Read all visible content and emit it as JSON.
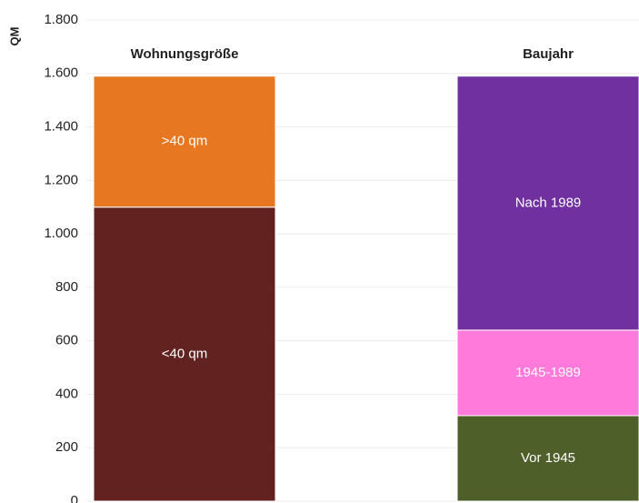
{
  "chart_data": {
    "type": "stacked-bar",
    "y_label": "QM",
    "categories": [
      "Wohnungsgröße",
      "Baujahr"
    ],
    "series": [
      {
        "name": "<40 qm",
        "color": "#62221f",
        "values": [
          1100,
          null
        ]
      },
      {
        "name": ">40 qm",
        "color": "#e87722",
        "values": [
          490,
          null
        ]
      },
      {
        "name": "Vor 1945",
        "color": "#4e5f29",
        "values": [
          null,
          320
        ]
      },
      {
        "name": "1945-1989",
        "color": "#ff7adb",
        "values": [
          null,
          320
        ]
      },
      {
        "name": "Nach 1989",
        "color": "#7030a0",
        "values": [
          null,
          950
        ]
      }
    ],
    "ylim": [
      0,
      1800
    ],
    "yticks": [
      0,
      200,
      400,
      600,
      800,
      {
        "value": 1000,
        "label": "1.000"
      },
      {
        "value": 1200,
        "label": "1.200"
      },
      {
        "value": 1400,
        "label": "1.400"
      },
      {
        "value": 1600,
        "label": "1.600"
      },
      {
        "value": 1800,
        "label": "1.800"
      }
    ],
    "grid": true
  }
}
